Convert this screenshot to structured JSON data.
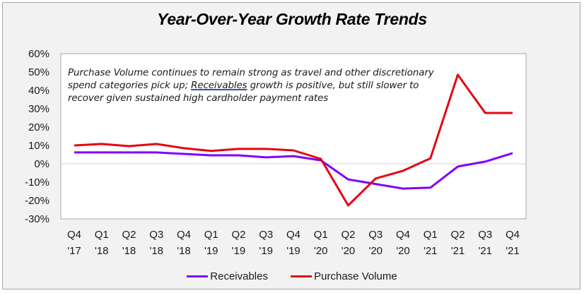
{
  "chart_data": {
    "type": "line",
    "title": "Year-Over-Year Growth Rate Trends",
    "annotation": {
      "before": "Purchase Volume continues to remain strong as travel and other discretionary spend categories pick up; ",
      "link": "Receivables",
      "after": " growth is positive, but still slower to recover given sustained high cardholder payment rates"
    },
    "xlabel": "",
    "ylabel": "",
    "categories": [
      [
        "Q4",
        "'17"
      ],
      [
        "Q1",
        "'18"
      ],
      [
        "Q2",
        "'18"
      ],
      [
        "Q3",
        "'18"
      ],
      [
        "Q4",
        "'18"
      ],
      [
        "Q1",
        "'19"
      ],
      [
        "Q2",
        "'19"
      ],
      [
        "Q3",
        "'19"
      ],
      [
        "Q4",
        "'19"
      ],
      [
        "Q1",
        "'20"
      ],
      [
        "Q2",
        "'20"
      ],
      [
        "Q3",
        "'20"
      ],
      [
        "Q4",
        "'20"
      ],
      [
        "Q1",
        "'21"
      ],
      [
        "Q2",
        "'21"
      ],
      [
        "Q3",
        "'21"
      ],
      [
        "Q4",
        "'21"
      ]
    ],
    "ylim": [
      -30,
      60
    ],
    "yticks": [
      60,
      50,
      40,
      30,
      20,
      10,
      0,
      -10,
      -20,
      -30
    ],
    "ytick_labels": [
      "60%",
      "50%",
      "40%",
      "30%",
      "20%",
      "10%",
      "0%",
      "-10%",
      "-20%",
      "-30%"
    ],
    "grid": false,
    "zero_line": true,
    "legend_position": "bottom",
    "series": [
      {
        "name": "Receivables",
        "color": "#7F00FF",
        "values": [
          6.2,
          6.2,
          6.2,
          6.2,
          5.4,
          4.6,
          4.6,
          3.5,
          4.2,
          1.9,
          -8.5,
          -11.0,
          -13.5,
          -13.0,
          -1.5,
          1.2,
          5.8
        ]
      },
      {
        "name": "Purchase Volume",
        "color": "#E30613",
        "values": [
          10.0,
          10.8,
          9.6,
          10.8,
          8.5,
          7.0,
          8.1,
          8.1,
          7.3,
          2.7,
          -22.7,
          -8.0,
          -3.8,
          3.0,
          48.5,
          27.7,
          27.7
        ]
      }
    ]
  }
}
